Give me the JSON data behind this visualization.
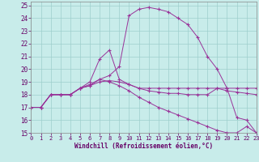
{
  "xlabel": "Windchill (Refroidissement éolien,°C)",
  "bg_color": "#c8ecea",
  "grid_color": "#9ecfcc",
  "line_color": "#993399",
  "xlim": [
    0,
    23
  ],
  "ylim": [
    15,
    25.3
  ],
  "xticks": [
    0,
    1,
    2,
    3,
    4,
    5,
    6,
    7,
    8,
    9,
    10,
    11,
    12,
    13,
    14,
    15,
    16,
    17,
    18,
    19,
    20,
    21,
    22,
    23
  ],
  "yticks": [
    15,
    16,
    17,
    18,
    19,
    20,
    21,
    22,
    23,
    24,
    25
  ],
  "line1_x": [
    0,
    1,
    2,
    3,
    4,
    5,
    6,
    7,
    8,
    9,
    10,
    11,
    12,
    13,
    14,
    15,
    16,
    17,
    18,
    19,
    20,
    21,
    22,
    23
  ],
  "line1_y": [
    17.0,
    17.0,
    18.0,
    18.0,
    18.0,
    18.5,
    18.7,
    19.2,
    19.5,
    20.2,
    24.2,
    24.7,
    24.85,
    24.7,
    24.5,
    24.0,
    23.5,
    22.5,
    21.0,
    20.0,
    18.5,
    16.2,
    16.0,
    15.0
  ],
  "line2_x": [
    0,
    1,
    2,
    3,
    4,
    5,
    6,
    7,
    8,
    9,
    10,
    11,
    12,
    13,
    14,
    15,
    16,
    17,
    18,
    19,
    20,
    21,
    22,
    23
  ],
  "line2_y": [
    17.0,
    17.0,
    18.0,
    18.0,
    18.0,
    18.5,
    19.0,
    20.8,
    21.5,
    19.2,
    18.8,
    18.5,
    18.3,
    18.2,
    18.1,
    18.1,
    18.0,
    18.0,
    18.0,
    18.5,
    18.3,
    18.2,
    18.1,
    18.0
  ],
  "line3_x": [
    0,
    1,
    2,
    3,
    4,
    5,
    6,
    7,
    8,
    9,
    10,
    11,
    12,
    13,
    14,
    15,
    16,
    17,
    18,
    19,
    20,
    21,
    22,
    23
  ],
  "line3_y": [
    17.0,
    17.0,
    18.0,
    18.0,
    18.0,
    18.5,
    18.8,
    19.2,
    19.0,
    18.7,
    18.3,
    17.8,
    17.4,
    17.0,
    16.7,
    16.4,
    16.1,
    15.8,
    15.5,
    15.2,
    15.0,
    15.0,
    15.5,
    15.0
  ],
  "line4_x": [
    0,
    1,
    2,
    3,
    4,
    5,
    6,
    7,
    8,
    9,
    10,
    11,
    12,
    13,
    14,
    15,
    16,
    17,
    18,
    19,
    20,
    21,
    22,
    23
  ],
  "line4_y": [
    17.0,
    17.0,
    18.0,
    18.0,
    18.0,
    18.5,
    18.7,
    19.0,
    19.1,
    19.0,
    18.8,
    18.5,
    18.5,
    18.5,
    18.5,
    18.5,
    18.5,
    18.5,
    18.5,
    18.5,
    18.5,
    18.5,
    18.5,
    18.5
  ]
}
